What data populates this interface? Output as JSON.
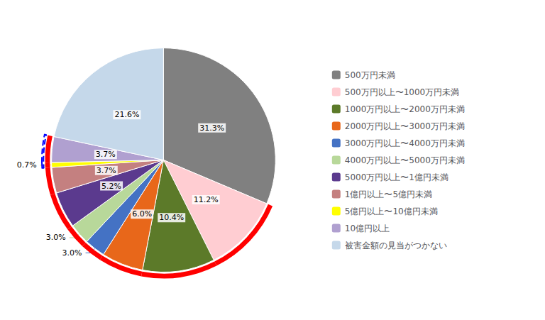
{
  "chart_data": {
    "type": "pie",
    "categories": [
      "500万円未満",
      "500万円以上〜1000万円未満",
      "1000万円以上〜2000万円未満",
      "2000万円以上〜3000万円未満",
      "3000万円以上〜4000万円未満",
      "4000万円以上〜5000万円未満",
      "5000万円以上〜1億円未満",
      "1億円以上〜5億円未満",
      "5億円以上〜10億円未満",
      "10億円以上",
      "被害金額の見当がつかない"
    ],
    "values": [
      31.3,
      11.2,
      10.4,
      6.0,
      3.0,
      3.0,
      5.2,
      3.7,
      0.7,
      3.7,
      21.6
    ],
    "value_labels": [
      "31.3%",
      "11.2%",
      "10.4%",
      "6.0%",
      "3.0%",
      "3.0%",
      "5.2%",
      "3.7%",
      "0.7%",
      "3.7%",
      "21.6%"
    ],
    "colors": [
      "#808080",
      "#FFCDD2",
      "#5C7A29",
      "#E8671A",
      "#4472C4",
      "#B8D89A",
      "#5B3A8E",
      "#C48080",
      "#FFFF00",
      "#B0A0D0",
      "#C5D8EA"
    ],
    "data_labels": true,
    "legend": "right"
  }
}
